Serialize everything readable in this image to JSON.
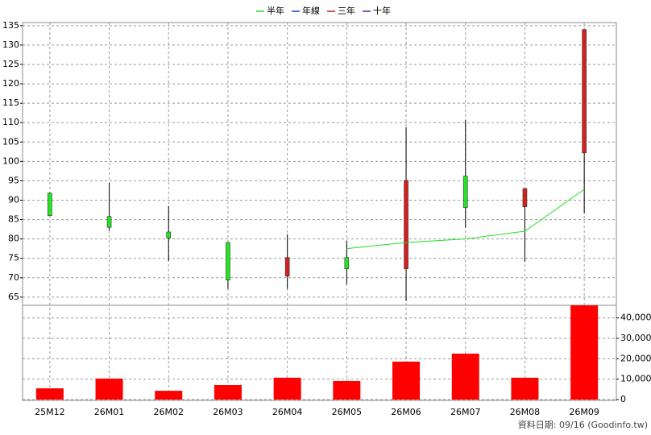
{
  "chart_data": {
    "type": "candlestick",
    "categories": [
      "25M12",
      "26M01",
      "26M02",
      "26M03",
      "26M04",
      "26M05",
      "26M06",
      "26M07",
      "26M08",
      "26M09"
    ],
    "ohlc": {
      "open": [
        91.8,
        85.8,
        81.8,
        79.1,
        70.4,
        75.2,
        72.3,
        96.2,
        88.3,
        102.2
      ],
      "high": [
        92.0,
        94.5,
        88.5,
        79.1,
        81.2,
        79.5,
        108.8,
        110.7,
        93.0,
        134.0
      ],
      "low": [
        86.0,
        82.2,
        74.3,
        67.1,
        67.1,
        68.3,
        64.0,
        82.9,
        74.1,
        86.6
      ],
      "close": [
        86.0,
        83.0,
        80.2,
        69.4,
        75.2,
        72.3,
        95.1,
        88.1,
        93.0,
        134.0
      ],
      "up_color": "#d42020",
      "down_color": "#22e622"
    },
    "series": [
      {
        "name": "半年",
        "color": "#22dd22",
        "values": [
          null,
          null,
          null,
          null,
          null,
          77.5,
          79.1,
          80.0,
          82.0,
          92.8
        ]
      },
      {
        "name": "年線",
        "color": "#2040c0",
        "values": [
          null,
          null,
          null,
          null,
          null,
          null,
          null,
          null,
          null,
          null
        ]
      },
      {
        "name": "三年",
        "color": "#c02020",
        "values": [
          null,
          null,
          null,
          null,
          null,
          null,
          null,
          null,
          null,
          null
        ]
      },
      {
        "name": "十年",
        "color": "#6020a0",
        "values": [
          null,
          null,
          null,
          null,
          null,
          null,
          null,
          null,
          null,
          null
        ]
      }
    ],
    "ylim": [
      63.1,
      135.8
    ],
    "yticks": [
      65,
      70,
      75,
      80,
      85,
      90,
      95,
      100,
      105,
      110,
      115,
      120,
      125,
      130,
      135
    ],
    "volume": {
      "axis": "y2",
      "color": "#ff0000",
      "values": [
        5500,
        10300,
        4300,
        7100,
        10700,
        9100,
        18600,
        22500,
        10700,
        46200
      ]
    },
    "y2lim": [
      0,
      45800
    ],
    "y2ticks": [
      0,
      {
        "value": 10000,
        "label": "10,000"
      },
      {
        "value": 20000,
        "label": "20,000"
      },
      {
        "value": 30000,
        "label": "30,000"
      },
      {
        "value": 40000,
        "label": "40,000"
      }
    ],
    "grid": true,
    "footer": "資料日期: 09/16  (Goodinfo.tw)"
  }
}
